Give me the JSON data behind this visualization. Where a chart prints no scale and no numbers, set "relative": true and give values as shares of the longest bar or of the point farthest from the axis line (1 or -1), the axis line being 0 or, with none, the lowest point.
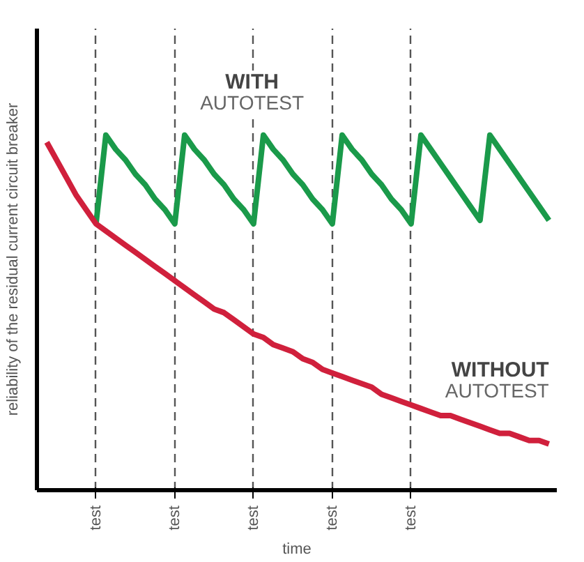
{
  "chart_data": {
    "type": "line",
    "relative": true,
    "ylabel": "reliability of the residual current circuit breaker",
    "xlabel": "time",
    "categories": [
      null,
      null,
      null,
      null,
      null,
      null,
      "test",
      null,
      null,
      null,
      null,
      null,
      null,
      null,
      "test",
      null,
      null,
      null,
      null,
      null,
      null,
      null,
      "test",
      null,
      null,
      null,
      null,
      null,
      null,
      null,
      "test",
      null,
      null,
      null,
      null,
      null,
      null,
      null,
      "test",
      null,
      null,
      null,
      null,
      null,
      null,
      null,
      null,
      null,
      null,
      null,
      null,
      null,
      null
    ],
    "series": [
      {
        "name": "WITH AUTOTEST",
        "color": "#1a9a4a",
        "values": [
          null,
          null,
          null,
          null,
          null,
          null,
          0.75,
          1.0,
          0.96,
          0.93,
          0.89,
          0.86,
          0.82,
          0.79,
          0.75,
          1.0,
          0.96,
          0.93,
          0.89,
          0.86,
          0.82,
          0.79,
          0.75,
          1.0,
          0.96,
          0.93,
          0.89,
          0.86,
          0.82,
          0.79,
          0.75,
          1.0,
          0.96,
          0.93,
          0.89,
          0.86,
          0.82,
          0.79,
          0.75,
          1.0,
          0.96,
          0.92,
          0.88,
          0.84,
          0.8,
          0.76,
          1.0,
          0.96,
          0.92,
          0.88,
          0.84,
          0.8,
          0.76
        ]
      },
      {
        "name": "WITHOUT AUTOTEST",
        "color": "#d0203c",
        "values": [
          null,
          0.98,
          0.93,
          0.88,
          0.83,
          0.79,
          0.75,
          0.73,
          0.71,
          0.69,
          0.67,
          0.65,
          0.63,
          0.61,
          0.59,
          0.57,
          0.55,
          0.53,
          0.51,
          0.5,
          0.48,
          0.46,
          0.44,
          0.43,
          0.41,
          0.4,
          0.39,
          0.37,
          0.36,
          0.34,
          0.33,
          0.32,
          0.31,
          0.3,
          0.29,
          0.27,
          0.26,
          0.25,
          0.24,
          0.23,
          0.22,
          0.21,
          0.21,
          0.2,
          0.19,
          0.18,
          0.17,
          0.16,
          0.16,
          0.15,
          0.14,
          0.14,
          0.13
        ]
      }
    ],
    "grid": "x",
    "line_style": "solid"
  }
}
